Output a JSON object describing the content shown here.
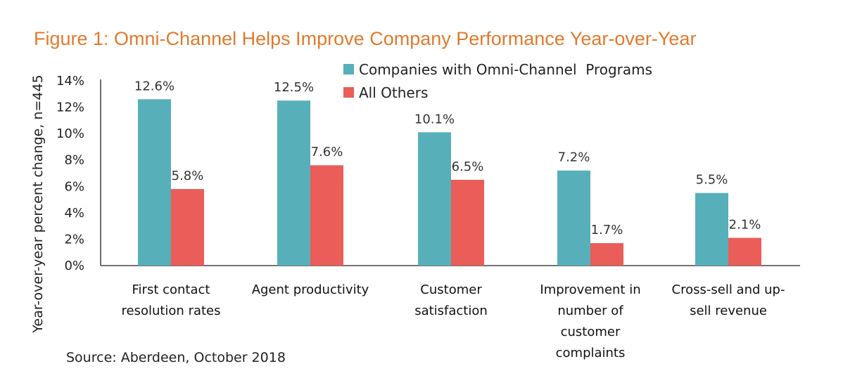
{
  "chart_data": {
    "type": "bar",
    "title": "Figure 1: Omni-Channel Helps Improve Company Performance Year-over-Year",
    "xlabel": "",
    "ylabel": "Year-over-year percent change, n=445",
    "ylim": [
      0,
      14
    ],
    "yticks": [
      0,
      2,
      4,
      6,
      8,
      10,
      12,
      14
    ],
    "ytick_labels": [
      "0%",
      "2%",
      "4%",
      "6%",
      "8%",
      "10%",
      "12%",
      "14%"
    ],
    "grid": false,
    "legend_position": "top-right",
    "categories": [
      [
        "First contact",
        "resolution rates"
      ],
      [
        "Agent productivity"
      ],
      [
        "Customer",
        "satisfaction"
      ],
      [
        "Improvement in",
        "number of",
        "customer",
        "complaints"
      ],
      [
        "Cross-sell and up-",
        "sell revenue"
      ]
    ],
    "series": [
      {
        "name": "Companies with Omni-Channel  Programs",
        "color": "#57AFB9",
        "values": [
          12.6,
          12.5,
          10.1,
          7.2,
          5.5
        ],
        "labels": [
          "12.6%",
          "12.5%",
          "10.1%",
          "7.2%",
          "5.5%"
        ]
      },
      {
        "name": "All Others",
        "color": "#EA5D58",
        "values": [
          5.8,
          7.6,
          6.5,
          1.7,
          2.1
        ],
        "labels": [
          "5.8%",
          "7.6%",
          "6.5%",
          "1.7%",
          "2.1%"
        ]
      }
    ],
    "source": "Source: Aberdeen, October 2018"
  },
  "colors": {
    "title": "#E07A2E",
    "axis": "#222222"
  }
}
